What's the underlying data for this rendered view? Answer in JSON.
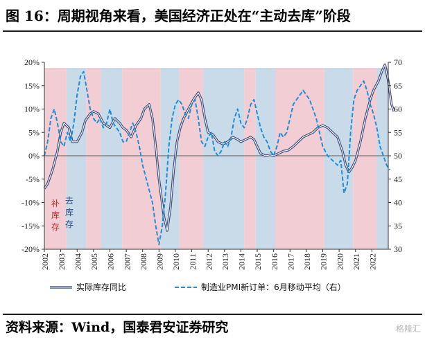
{
  "title": "图 16：周期视角来看，美国经济正处在“主动去库”阶段",
  "source": "资料来源：Wind，国泰君安证券研究",
  "watermark": "格隆汇",
  "chart_data": {
    "type": "line",
    "x_axis": {
      "labels": [
        "2002",
        "2003",
        "2004",
        "2005",
        "2006",
        "2007",
        "2008",
        "2009",
        "2010",
        "2011",
        "2012",
        "2013",
        "2014",
        "2015",
        "2016",
        "2017",
        "2018",
        "2019",
        "2020",
        "2021",
        "2022"
      ],
      "range": [
        2002,
        2023
      ]
    },
    "y_left": {
      "ticks": [
        "20%",
        "15%",
        "10%",
        "5%",
        "0%",
        "-5%",
        "-10%",
        "-15%",
        "-20%"
      ],
      "range": [
        -20,
        20
      ]
    },
    "y_right": {
      "ticks": [
        "70",
        "65",
        "60",
        "55",
        "50",
        "45",
        "40",
        "35",
        "30"
      ],
      "range": [
        30,
        70
      ]
    },
    "series": [
      {
        "name": "实际库存同比",
        "axis": "left",
        "color": "#3a4a7c",
        "style": "double-line",
        "points": [
          [
            2002.0,
            -7
          ],
          [
            2002.2,
            -6
          ],
          [
            2002.5,
            -3
          ],
          [
            2002.8,
            1
          ],
          [
            2003.0,
            5
          ],
          [
            2003.2,
            7
          ],
          [
            2003.5,
            6
          ],
          [
            2003.7,
            3
          ],
          [
            2004.0,
            3
          ],
          [
            2004.3,
            5
          ],
          [
            2004.5,
            7.5
          ],
          [
            2004.8,
            9
          ],
          [
            2005.0,
            9.5
          ],
          [
            2005.3,
            9
          ],
          [
            2005.6,
            7
          ],
          [
            2006.0,
            6
          ],
          [
            2006.3,
            8
          ],
          [
            2006.6,
            7
          ],
          [
            2006.8,
            6
          ],
          [
            2007.0,
            5.5
          ],
          [
            2007.3,
            4
          ],
          [
            2007.6,
            6.5
          ],
          [
            2007.9,
            8
          ],
          [
            2008.1,
            10
          ],
          [
            2008.4,
            11
          ],
          [
            2008.6,
            8
          ],
          [
            2008.8,
            2
          ],
          [
            2009.0,
            -5
          ],
          [
            2009.3,
            -13
          ],
          [
            2009.5,
            -16
          ],
          [
            2009.7,
            -11
          ],
          [
            2009.9,
            -3
          ],
          [
            2010.1,
            3
          ],
          [
            2010.3,
            6
          ],
          [
            2010.5,
            8
          ],
          [
            2010.8,
            10
          ],
          [
            2011.1,
            12
          ],
          [
            2011.4,
            13.5
          ],
          [
            2011.6,
            12
          ],
          [
            2011.8,
            8
          ],
          [
            2012.0,
            5
          ],
          [
            2012.3,
            4.5
          ],
          [
            2012.6,
            3
          ],
          [
            2012.9,
            2.5
          ],
          [
            2013.2,
            3
          ],
          [
            2013.5,
            4
          ],
          [
            2013.8,
            3.5
          ],
          [
            2014.0,
            3
          ],
          [
            2014.3,
            3.5
          ],
          [
            2014.6,
            4
          ],
          [
            2014.8,
            3.5
          ],
          [
            2015.0,
            2
          ],
          [
            2015.2,
            0.5
          ],
          [
            2015.5,
            0
          ],
          [
            2015.8,
            0.2
          ],
          [
            2016.0,
            0
          ],
          [
            2016.3,
            0.5
          ],
          [
            2016.6,
            1
          ],
          [
            2016.9,
            1.2
          ],
          [
            2017.2,
            2
          ],
          [
            2017.5,
            3
          ],
          [
            2017.8,
            4
          ],
          [
            2018.1,
            4.5
          ],
          [
            2018.4,
            5
          ],
          [
            2018.7,
            6
          ],
          [
            2019.0,
            6.5
          ],
          [
            2019.3,
            6
          ],
          [
            2019.6,
            5
          ],
          [
            2019.9,
            4
          ],
          [
            2020.2,
            1
          ],
          [
            2020.4,
            -2
          ],
          [
            2020.6,
            -3.5
          ],
          [
            2020.8,
            -2.5
          ],
          [
            2021.0,
            -1
          ],
          [
            2021.3,
            3
          ],
          [
            2021.6,
            8
          ],
          [
            2021.9,
            12
          ],
          [
            2022.1,
            14
          ],
          [
            2022.4,
            16
          ],
          [
            2022.6,
            18
          ],
          [
            2022.8,
            19.5
          ],
          [
            2023.0,
            16
          ],
          [
            2023.2,
            11
          ],
          [
            2023.35,
            9.5
          ]
        ]
      },
      {
        "name": "制造业PMI新订单：6月移动平均（右）",
        "axis": "right",
        "color": "#1f8ed8",
        "style": "dashed",
        "points": [
          [
            2002.0,
            50
          ],
          [
            2002.2,
            53
          ],
          [
            2002.4,
            58
          ],
          [
            2002.6,
            60
          ],
          [
            2002.8,
            57
          ],
          [
            2003.0,
            53
          ],
          [
            2003.2,
            52
          ],
          [
            2003.4,
            55
          ],
          [
            2003.6,
            53
          ],
          [
            2003.8,
            57
          ],
          [
            2004.0,
            63
          ],
          [
            2004.2,
            67
          ],
          [
            2004.4,
            68
          ],
          [
            2004.6,
            64
          ],
          [
            2004.8,
            60
          ],
          [
            2005.0,
            58
          ],
          [
            2005.2,
            57
          ],
          [
            2005.4,
            58
          ],
          [
            2005.6,
            56
          ],
          [
            2005.8,
            57
          ],
          [
            2006.0,
            60
          ],
          [
            2006.2,
            57
          ],
          [
            2006.4,
            56
          ],
          [
            2006.6,
            55
          ],
          [
            2006.8,
            53
          ],
          [
            2007.0,
            53
          ],
          [
            2007.2,
            55
          ],
          [
            2007.4,
            57
          ],
          [
            2007.6,
            55
          ],
          [
            2007.8,
            52
          ],
          [
            2008.0,
            48
          ],
          [
            2008.3,
            44
          ],
          [
            2008.6,
            40
          ],
          [
            2008.8,
            35
          ],
          [
            2009.0,
            31
          ],
          [
            2009.2,
            35
          ],
          [
            2009.4,
            42
          ],
          [
            2009.6,
            52
          ],
          [
            2009.8,
            58
          ],
          [
            2010.0,
            61
          ],
          [
            2010.2,
            62
          ],
          [
            2010.4,
            61
          ],
          [
            2010.6,
            59
          ],
          [
            2010.8,
            58
          ],
          [
            2011.0,
            61
          ],
          [
            2011.2,
            62
          ],
          [
            2011.4,
            58
          ],
          [
            2011.6,
            53
          ],
          [
            2011.8,
            52
          ],
          [
            2012.0,
            54
          ],
          [
            2012.2,
            55
          ],
          [
            2012.4,
            51
          ],
          [
            2012.6,
            50
          ],
          [
            2012.8,
            51
          ],
          [
            2013.0,
            53
          ],
          [
            2013.2,
            52
          ],
          [
            2013.4,
            54
          ],
          [
            2013.6,
            58
          ],
          [
            2013.8,
            60
          ],
          [
            2014.0,
            57
          ],
          [
            2014.2,
            56
          ],
          [
            2014.4,
            58
          ],
          [
            2014.6,
            61
          ],
          [
            2014.8,
            62
          ],
          [
            2015.0,
            59
          ],
          [
            2015.2,
            56
          ],
          [
            2015.4,
            54
          ],
          [
            2015.6,
            53
          ],
          [
            2015.8,
            51
          ],
          [
            2016.0,
            50
          ],
          [
            2016.2,
            52
          ],
          [
            2016.4,
            55
          ],
          [
            2016.6,
            54
          ],
          [
            2016.8,
            55
          ],
          [
            2017.0,
            58
          ],
          [
            2017.2,
            61
          ],
          [
            2017.4,
            62
          ],
          [
            2017.6,
            63
          ],
          [
            2017.8,
            64
          ],
          [
            2018.0,
            63
          ],
          [
            2018.2,
            62
          ],
          [
            2018.4,
            60
          ],
          [
            2018.6,
            58
          ],
          [
            2018.8,
            55
          ],
          [
            2019.0,
            52
          ],
          [
            2019.3,
            50
          ],
          [
            2019.6,
            49
          ],
          [
            2019.9,
            48
          ],
          [
            2020.1,
            49
          ],
          [
            2020.3,
            42
          ],
          [
            2020.5,
            44
          ],
          [
            2020.7,
            55
          ],
          [
            2020.9,
            62
          ],
          [
            2021.1,
            64
          ],
          [
            2021.3,
            65
          ],
          [
            2021.5,
            66
          ],
          [
            2021.7,
            64
          ],
          [
            2021.9,
            61
          ],
          [
            2022.1,
            59
          ],
          [
            2022.3,
            56
          ],
          [
            2022.5,
            52
          ],
          [
            2022.7,
            50
          ],
          [
            2022.9,
            48
          ],
          [
            2023.1,
            47
          ]
        ]
      }
    ],
    "phases": [
      {
        "start": 2002.0,
        "end": 2003.35,
        "type": "restock"
      },
      {
        "start": 2003.35,
        "end": 2004.55,
        "type": "destock"
      },
      {
        "start": 2004.55,
        "end": 2005.45,
        "type": "restock"
      },
      {
        "start": 2005.45,
        "end": 2006.75,
        "type": "destock"
      },
      {
        "start": 2006.75,
        "end": 2009.1,
        "type": "restock"
      },
      {
        "start": 2009.1,
        "end": 2010.25,
        "type": "destock"
      },
      {
        "start": 2010.25,
        "end": 2011.7,
        "type": "restock"
      },
      {
        "start": 2011.7,
        "end": 2014.2,
        "type": "destock"
      },
      {
        "start": 2014.2,
        "end": 2014.9,
        "type": "restock"
      },
      {
        "start": 2014.9,
        "end": 2016.1,
        "type": "destock"
      },
      {
        "start": 2016.1,
        "end": 2019.1,
        "type": "restock"
      },
      {
        "start": 2019.1,
        "end": 2020.85,
        "type": "destock"
      },
      {
        "start": 2020.85,
        "end": 2022.3,
        "type": "restock"
      },
      {
        "start": 2022.3,
        "end": 2023.4,
        "type": "destock"
      }
    ],
    "phase_colors": {
      "restock": "#f2cdd3",
      "destock": "#c9dae9"
    },
    "annotations": [
      {
        "text": "补",
        "text2": "库",
        "text3": "存",
        "color": "#c0282c"
      },
      {
        "text": "去",
        "text2": "库",
        "text3": "存",
        "color": "#2a4b8d"
      }
    ],
    "legend": [
      {
        "label": "实际库存同比"
      },
      {
        "label": "制造业PMI新订单：6月移动平均（右）"
      }
    ]
  }
}
